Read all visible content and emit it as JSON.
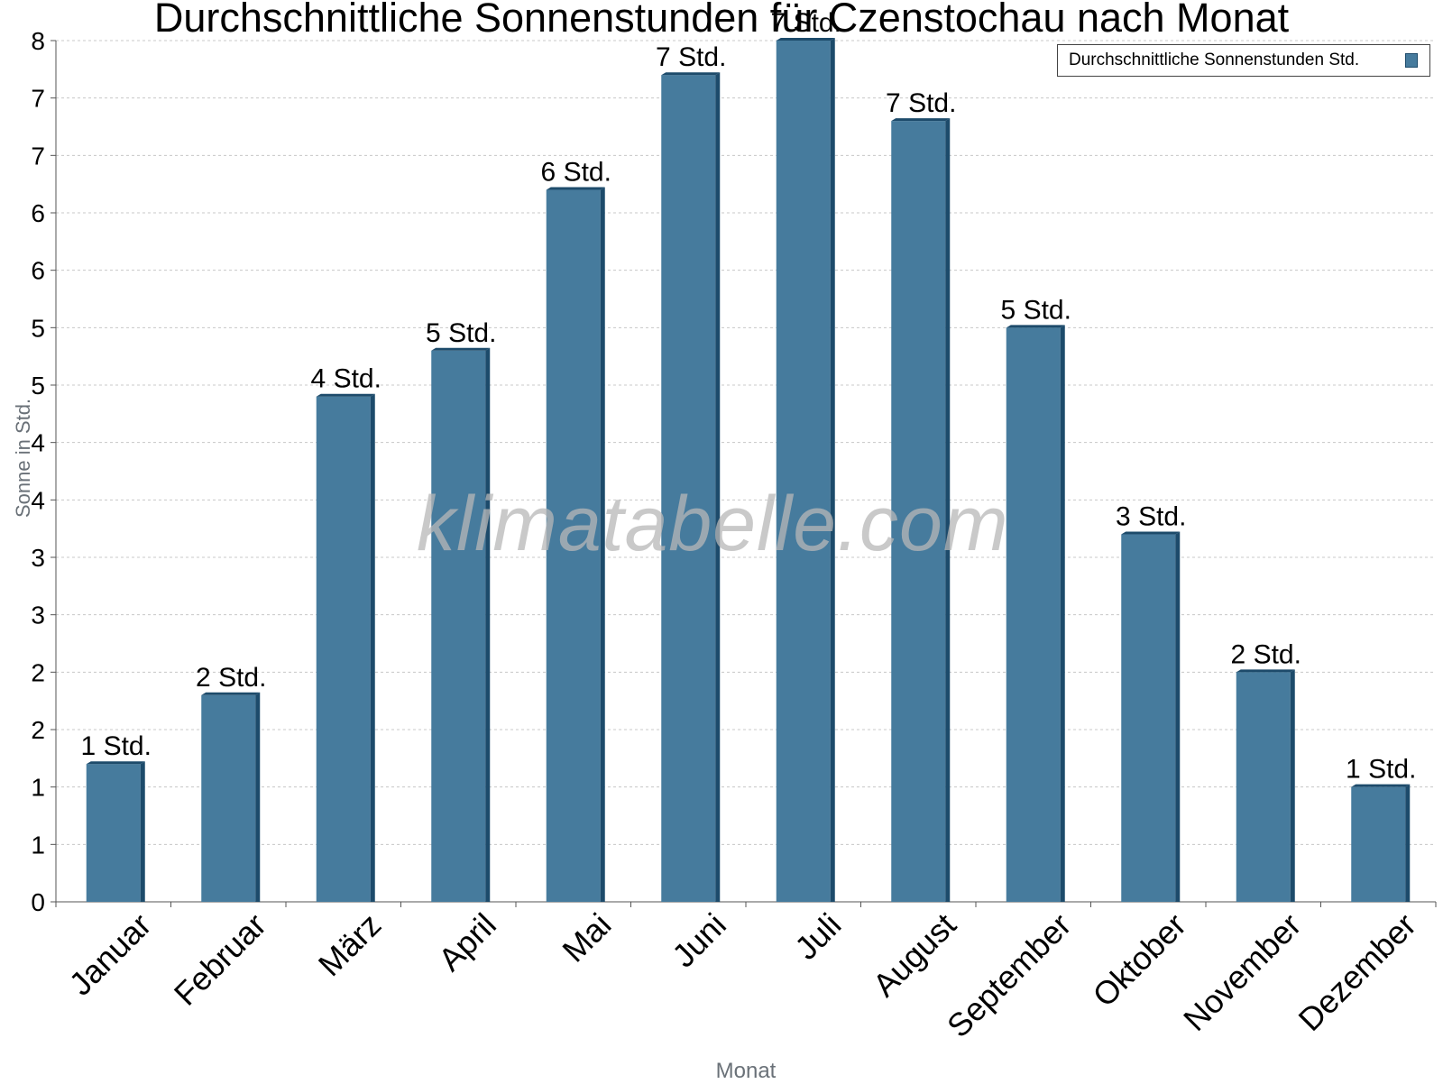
{
  "chart_data": {
    "type": "bar",
    "title": "Durchschnittliche Sonnenstunden für Czenstochau nach Monat",
    "xlabel": "Monat",
    "ylabel": "Sonne in Std.",
    "ylim": [
      0,
      7.5
    ],
    "y_tick_values": [
      0,
      0.5,
      1,
      1.5,
      2,
      2.5,
      3,
      3.5,
      4,
      4.5,
      5,
      5.5,
      6,
      6.5,
      7,
      7.5
    ],
    "y_tick_labels": [
      "0",
      "1",
      "1",
      "2",
      "2",
      "3",
      "3",
      "4",
      "4",
      "5",
      "5",
      "6",
      "6",
      "7",
      "7",
      "8"
    ],
    "categories": [
      "Januar",
      "Februar",
      "März",
      "April",
      "Mai",
      "Juni",
      "Juli",
      "August",
      "September",
      "Oktober",
      "November",
      "Dezember"
    ],
    "series": [
      {
        "name": "Durchschnittliche Sonnenstunden Std.",
        "values": [
          1.2,
          1.8,
          4.4,
          4.8,
          6.2,
          7.2,
          7.5,
          6.8,
          5.0,
          3.2,
          2.0,
          1.0
        ],
        "data_labels": [
          "1 Std.",
          "2 Std.",
          "4 Std.",
          "5 Std.",
          "6 Std.",
          "7 Std.",
          "7 Std.",
          "7 Std.",
          "5 Std.",
          "3 Std.",
          "2 Std.",
          "1 Std."
        ]
      }
    ],
    "legend": "top-right",
    "grid": true,
    "watermark": "klimatabelle.com",
    "colors": {
      "bar": "#467b9d",
      "bar_dark": "#1d4b6b",
      "grid": "#c8c8c8"
    }
  }
}
